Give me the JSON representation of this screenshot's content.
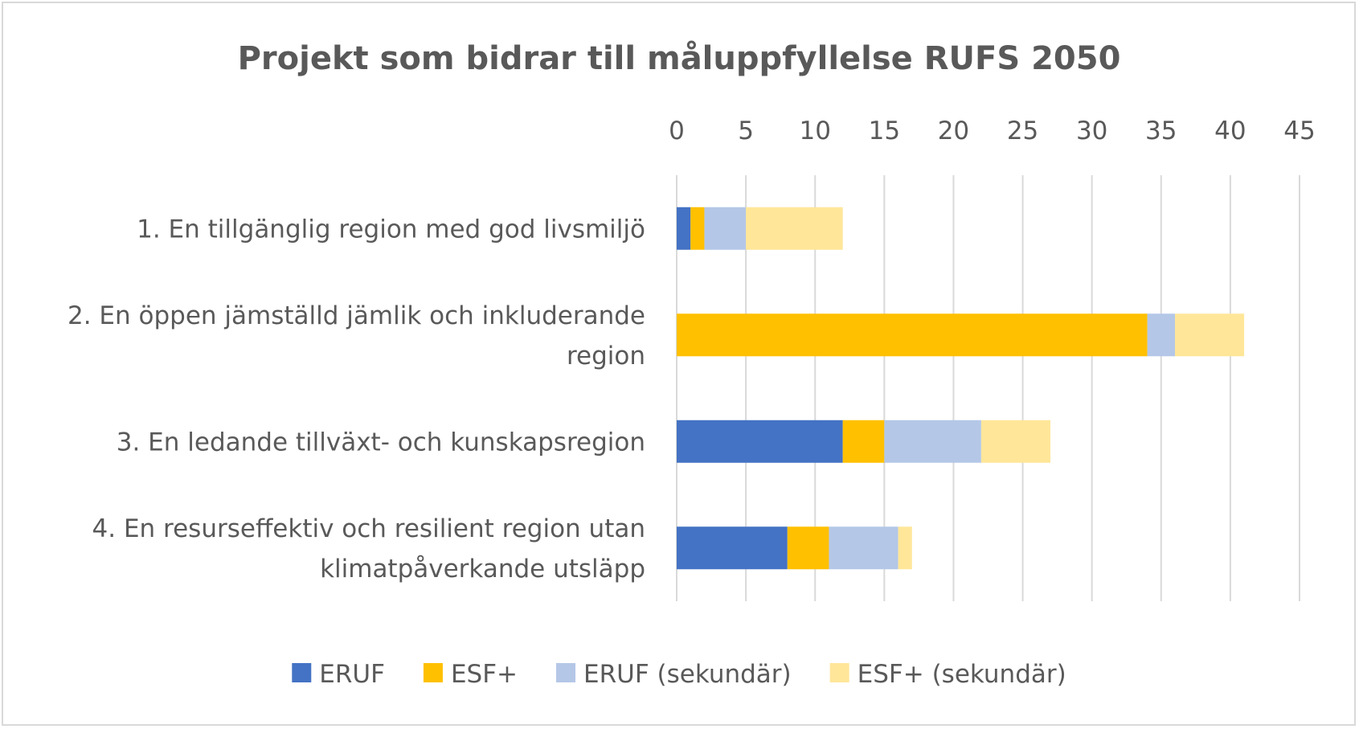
{
  "chart_data": {
    "type": "bar",
    "orientation": "horizontal",
    "stacked": true,
    "title": "Projekt som bidrar till måluppfyllelse RUFS 2050",
    "xlim": [
      0,
      45
    ],
    "x_ticks": [
      "0",
      "5",
      "10",
      "15",
      "20",
      "25",
      "30",
      "35",
      "40",
      "45"
    ],
    "x_axis_position": "top",
    "grid": true,
    "legend_position": "bottom",
    "categories": [
      [
        "1. En tillgänglig region med god livsmiljö"
      ],
      [
        "2. En öppen jämställd jämlik och inkluderande",
        "region"
      ],
      [
        "3. En ledande tillväxt- och kunskapsregion"
      ],
      [
        "4. En resurseffektiv och resilient region utan",
        "klimatpåverkande utsläpp"
      ]
    ],
    "series": [
      {
        "name": "ERUF",
        "color": "#4472c4",
        "values": [
          1,
          0,
          12,
          8
        ]
      },
      {
        "name": "ESF+",
        "color": "#ffc000",
        "values": [
          1,
          34,
          3,
          3
        ]
      },
      {
        "name": "ERUF (sekundär)",
        "color": "#b4c7e7",
        "values": [
          3,
          2,
          7,
          5
        ]
      },
      {
        "name": "ESF+ (sekundär)",
        "color": "#ffe699",
        "values": [
          7,
          5,
          5,
          1
        ]
      }
    ]
  }
}
